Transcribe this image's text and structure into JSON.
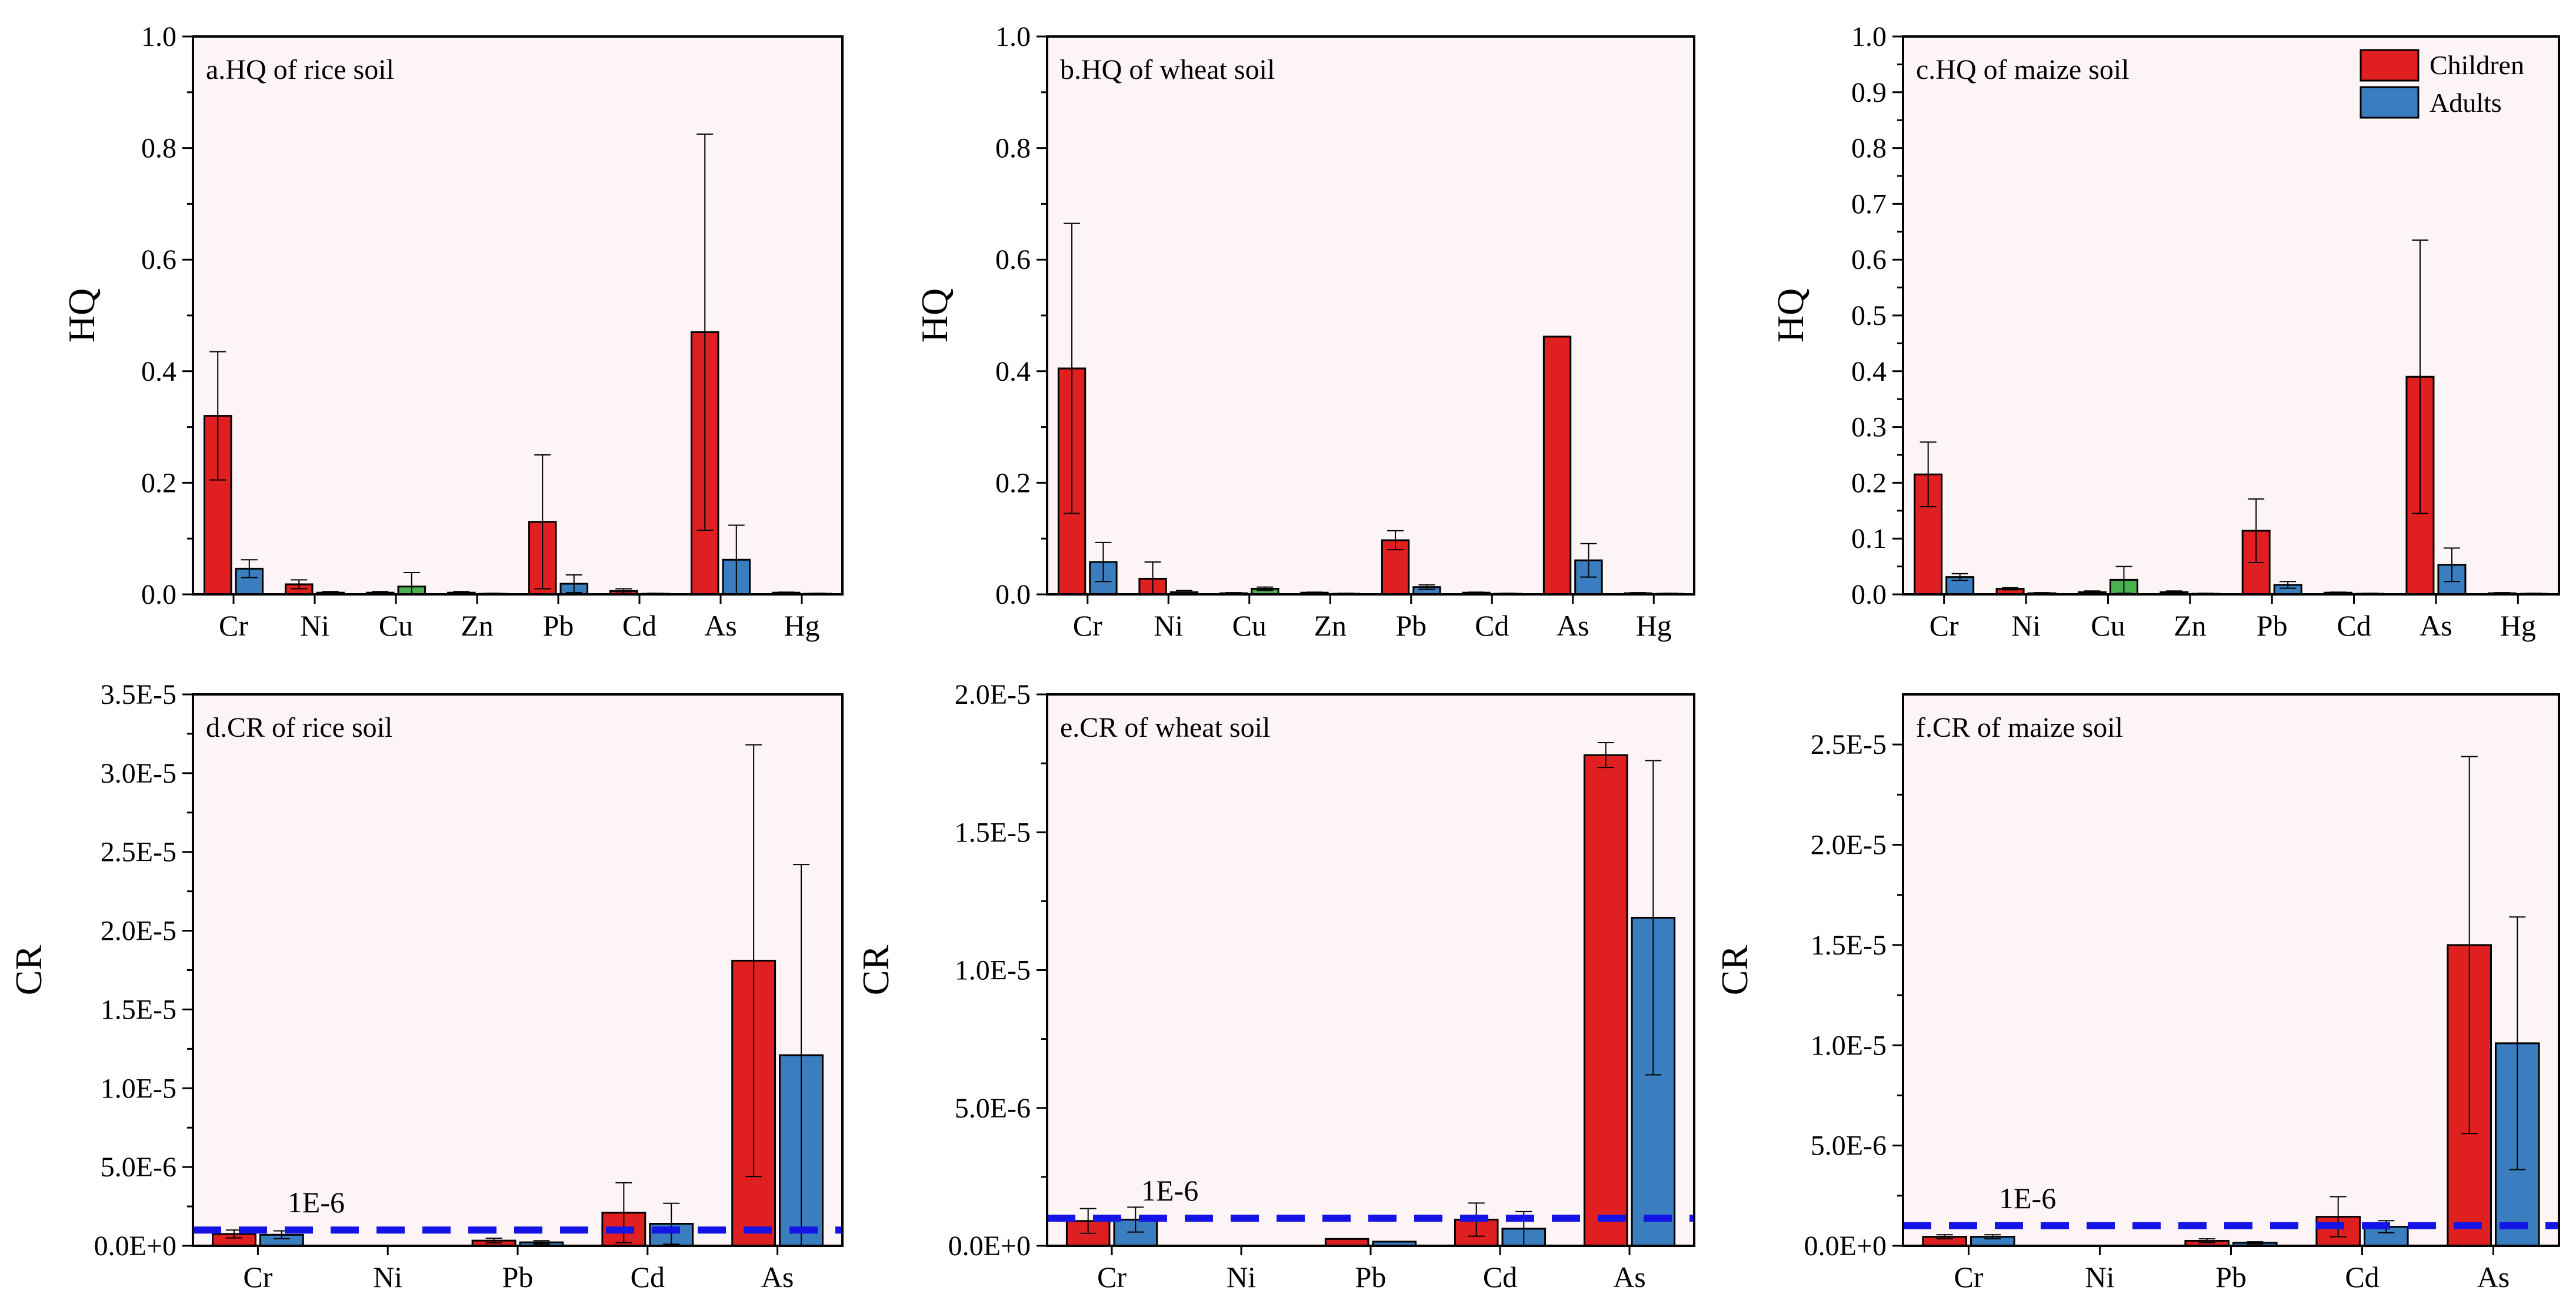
{
  "legend": {
    "items": [
      {
        "label": "Children",
        "color": "#e02020"
      },
      {
        "label": "Adults",
        "color": "#3a7ebf"
      }
    ],
    "position": "top-right of panel c"
  },
  "colors": {
    "children": "#e02020",
    "adults": "#3a7ebf",
    "cu_bar": "#4caf50",
    "panel_background": "#fdf5f5",
    "threshold_line": "#1414e6"
  },
  "chart_data": [
    {
      "type": "bar",
      "panel": "a",
      "title": "a.HQ of rice soil",
      "ylabel": "HQ",
      "categories": [
        "Cr",
        "Ni",
        "Cu",
        "Zn",
        "Pb",
        "Cd",
        "As",
        "Hg"
      ],
      "ylim": [
        0,
        1.0
      ],
      "yticks": [
        "0.0",
        "0.2",
        "0.4",
        "0.6",
        "0.8",
        "1.0"
      ],
      "series": [
        {
          "name": "Children",
          "values": [
            0.32,
            0.018,
            0.003,
            0.003,
            0.13,
            0.006,
            0.47,
            0.003
          ],
          "errors": [
            0.115,
            0.008,
            0.002,
            0.002,
            0.12,
            0.004,
            0.355,
            0.001
          ]
        },
        {
          "name": "Adults",
          "values": [
            0.046,
            0.003,
            0.014,
            0.001,
            0.019,
            0.001,
            0.062,
            0.001
          ],
          "errors": [
            0.016,
            0.002,
            0.025,
            0.001,
            0.016,
            0.001,
            0.062,
            0.001
          ]
        }
      ]
    },
    {
      "type": "bar",
      "panel": "b",
      "title": "b.HQ of wheat soil",
      "ylabel": "HQ",
      "categories": [
        "Cr",
        "Ni",
        "Cu",
        "Zn",
        "Pb",
        "Cd",
        "As",
        "Hg"
      ],
      "ylim": [
        0,
        1.0
      ],
      "yticks": [
        "0.0",
        "0.2",
        "0.4",
        "0.6",
        "0.8",
        "1.0"
      ],
      "series": [
        {
          "name": "Children",
          "values": [
            0.405,
            0.028,
            0.002,
            0.003,
            0.097,
            0.003,
            0.462,
            0.002
          ],
          "errors": [
            0.26,
            0.03,
            0.001,
            0.001,
            0.017,
            0.001,
            0.0,
            0.001
          ]
        },
        {
          "name": "Adults",
          "values": [
            0.058,
            0.004,
            0.01,
            0.001,
            0.013,
            0.001,
            0.061,
            0.001
          ],
          "errors": [
            0.035,
            0.003,
            0.003,
            0.001,
            0.004,
            0.001,
            0.03,
            0.001
          ]
        }
      ]
    },
    {
      "type": "bar",
      "panel": "c",
      "title": "c.HQ of maize soil",
      "ylabel": "HQ",
      "categories": [
        "Cr",
        "Ni",
        "Cu",
        "Zn",
        "Pb",
        "Cd",
        "As",
        "Hg"
      ],
      "ylim": [
        0,
        1.0
      ],
      "yticks": [
        "0.0",
        "0.1",
        "0.2",
        "0.3",
        "0.4",
        "0.5",
        "0.6",
        "0.7",
        "0.8",
        "0.9",
        "1.0"
      ],
      "series": [
        {
          "name": "Children",
          "values": [
            0.215,
            0.01,
            0.004,
            0.004,
            0.114,
            0.003,
            0.39,
            0.002
          ],
          "errors": [
            0.058,
            0.002,
            0.002,
            0.002,
            0.057,
            0.001,
            0.245,
            0.001
          ]
        },
        {
          "name": "Adults",
          "values": [
            0.031,
            0.002,
            0.026,
            0.001,
            0.017,
            0.001,
            0.053,
            0.001
          ],
          "errors": [
            0.006,
            0.001,
            0.024,
            0.001,
            0.006,
            0.001,
            0.03,
            0.001
          ]
        }
      ]
    },
    {
      "type": "bar",
      "panel": "d",
      "title": "d.CR of rice soil",
      "ylabel": "CR",
      "categories": [
        "Cr",
        "Ni",
        "Pb",
        "Cd",
        "As"
      ],
      "ylim": [
        0,
        3.5e-05
      ],
      "yticks": [
        "0.0E+0",
        "5.0E-6",
        "1.0E-5",
        "1.5E-5",
        "2.0E-5",
        "2.5E-5",
        "3.0E-5",
        "3.5E-5"
      ],
      "threshold": {
        "value": 1e-06,
        "label": "1E-6"
      },
      "series": [
        {
          "name": "Children",
          "values": [
            7.5e-07,
            0,
            3.3e-07,
            2.1e-06,
            1.81e-05
          ],
          "errors": [
            2.5e-07,
            0,
            1.5e-07,
            1.9e-06,
            1.37e-05
          ]
        },
        {
          "name": "Adults",
          "values": [
            7e-07,
            0,
            2.2e-07,
            1.4e-06,
            1.21e-05
          ],
          "errors": [
            2.5e-07,
            0,
            1e-07,
            1.3e-06,
            1.21e-05
          ]
        }
      ]
    },
    {
      "type": "bar",
      "panel": "e",
      "title": "e.CR of wheat soil",
      "ylabel": "CR",
      "categories": [
        "Cr",
        "Ni",
        "Pb",
        "Cd",
        "As"
      ],
      "ylim": [
        0,
        2e-05
      ],
      "yticks": [
        "0.0E+0",
        "5.0E-6",
        "1.0E-5",
        "1.5E-5",
        "2.0E-5"
      ],
      "threshold": {
        "value": 1e-06,
        "label": "1E-6"
      },
      "series": [
        {
          "name": "Children",
          "values": [
            9e-07,
            0,
            2.5e-07,
            9.5e-07,
            1.78e-05
          ],
          "errors": [
            4.5e-07,
            0,
            0,
            6e-07,
            4.5e-07
          ]
        },
        {
          "name": "Adults",
          "values": [
            9.5e-07,
            0,
            1.5e-07,
            6.2e-07,
            1.19e-05
          ],
          "errors": [
            4.5e-07,
            0,
            0,
            6.2e-07,
            5.7e-06
          ]
        }
      ]
    },
    {
      "type": "bar",
      "panel": "f",
      "title": "f.CR of maize soil",
      "ylabel": "CR",
      "categories": [
        "Cr",
        "Ni",
        "Pb",
        "Cd",
        "As"
      ],
      "ylim": [
        0,
        2.75e-05
      ],
      "yticks": [
        "0.0E+0",
        "5.0E-6",
        "1.0E-5",
        "1.5E-5",
        "2.0E-5",
        "2.5E-5"
      ],
      "threshold": {
        "value": 1e-06,
        "label": "1E-6"
      },
      "series": [
        {
          "name": "Children",
          "values": [
            4.5e-07,
            0,
            2.5e-07,
            1.45e-06,
            1.5e-05
          ],
          "errors": [
            1e-07,
            0,
            1e-07,
            1e-06,
            9.4e-06
          ]
        },
        {
          "name": "Adults",
          "values": [
            4.5e-07,
            0,
            1.5e-07,
            9.5e-07,
            1.01e-05
          ],
          "errors": [
            1e-07,
            0,
            5e-08,
            3e-07,
            6.3e-06
          ]
        }
      ]
    }
  ]
}
